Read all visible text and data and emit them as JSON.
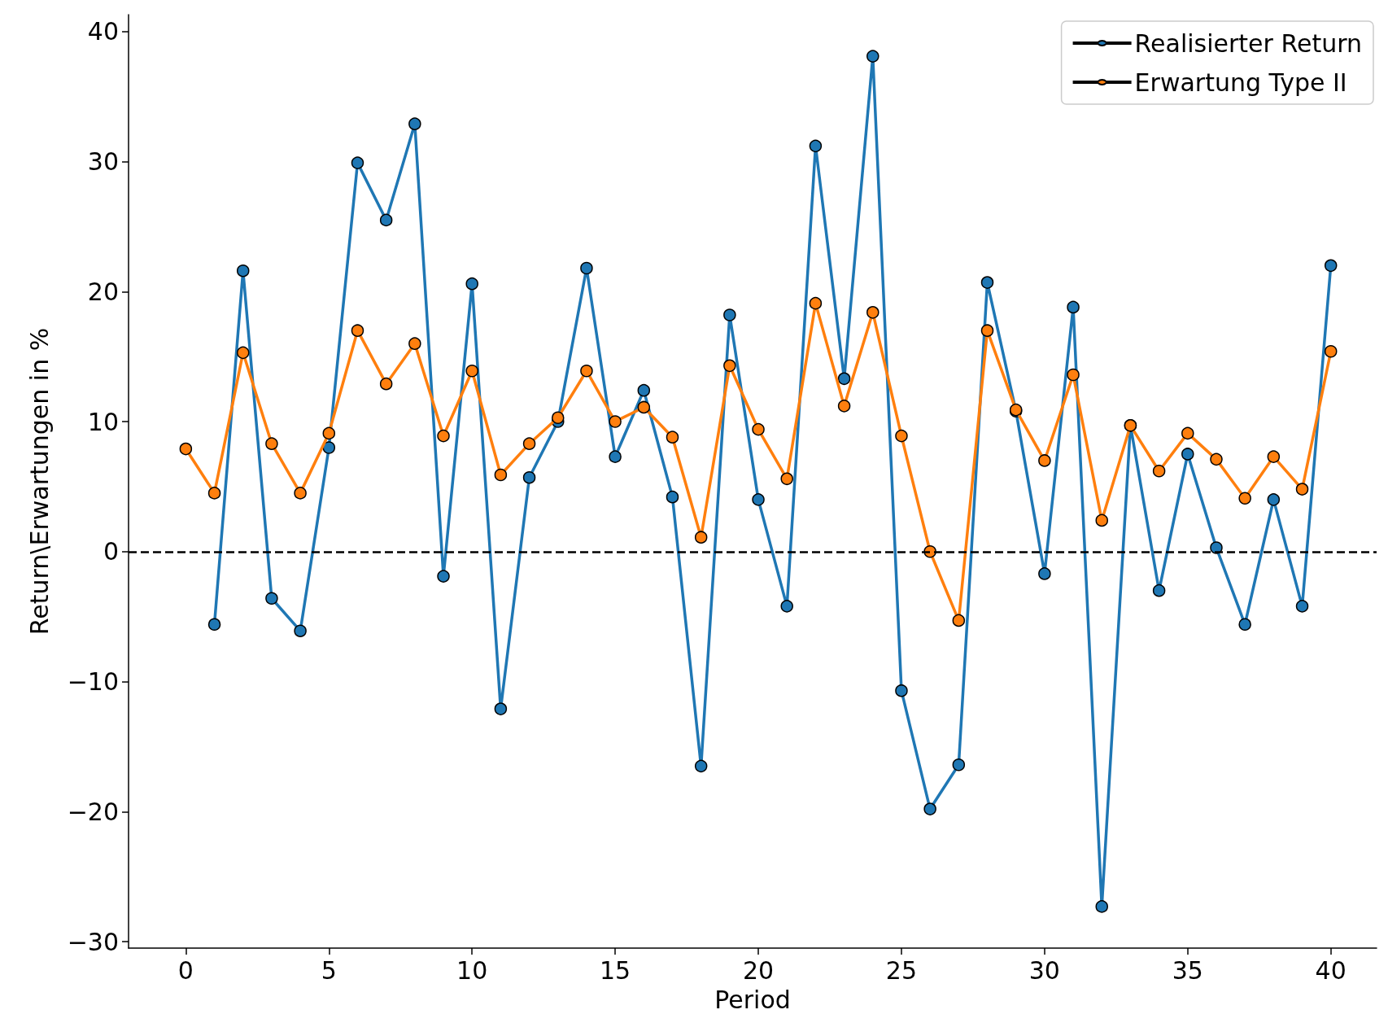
{
  "chart_data": {
    "type": "line",
    "xlabel": "Period",
    "ylabel": "Return\\Erwartungen in %",
    "x": [
      0,
      1,
      2,
      3,
      4,
      5,
      6,
      7,
      8,
      9,
      10,
      11,
      12,
      13,
      14,
      15,
      16,
      17,
      18,
      19,
      20,
      21,
      22,
      23,
      24,
      25,
      26,
      27,
      28,
      29,
      30,
      31,
      32,
      33,
      34,
      35,
      36,
      37,
      38,
      39,
      40
    ],
    "series": [
      {
        "name": "Realisierter Return",
        "color": "#1f77b4",
        "x": [
          1,
          2,
          3,
          4,
          5,
          6,
          7,
          8,
          9,
          10,
          11,
          12,
          13,
          14,
          15,
          16,
          17,
          18,
          19,
          20,
          21,
          22,
          23,
          24,
          25,
          26,
          27,
          28,
          29,
          30,
          31,
          32,
          33,
          34,
          35,
          36,
          37,
          38,
          39,
          40
        ],
        "values": [
          -5.6,
          21.6,
          -3.6,
          -6.1,
          8.0,
          29.9,
          25.5,
          32.9,
          -1.9,
          20.6,
          -12.1,
          5.7,
          10.0,
          21.8,
          7.3,
          12.4,
          4.2,
          -16.5,
          18.2,
          4.0,
          -4.2,
          31.2,
          13.3,
          38.1,
          -10.7,
          -19.8,
          -16.4,
          20.7,
          10.8,
          -1.7,
          18.8,
          -27.3,
          9.7,
          -3.0,
          7.5,
          0.3,
          -5.6,
          4.0,
          -4.2,
          22.0
        ]
      },
      {
        "name": "Erwartung Type II",
        "color": "#ff7f0e",
        "values": [
          7.9,
          4.5,
          15.3,
          8.3,
          4.5,
          9.1,
          17.0,
          12.9,
          16.0,
          8.9,
          13.9,
          5.9,
          8.3,
          10.3,
          13.9,
          10.0,
          11.1,
          8.8,
          1.1,
          14.3,
          9.4,
          5.6,
          19.1,
          11.2,
          18.4,
          8.9,
          0,
          -5.3,
          17.0,
          10.9,
          7.0,
          13.6,
          2.4,
          9.7,
          6.2,
          9.1,
          7.1,
          4.1,
          7.3,
          4.8,
          15.4
        ]
      }
    ],
    "xlim": [
      -2,
      41.6
    ],
    "ylim": [
      -30.5,
      41.3
    ],
    "xticks": [
      0,
      5,
      10,
      15,
      20,
      25,
      30,
      35,
      40
    ],
    "yticks": [
      -30,
      -20,
      -10,
      0,
      10,
      20,
      30,
      40
    ],
    "ref_lines": [
      {
        "axis": "y",
        "value": 0,
        "color": "#000000",
        "line_style": "dashed"
      }
    ],
    "grid": false,
    "legend": "top right",
    "marker": "circle",
    "line_style": "solid"
  }
}
